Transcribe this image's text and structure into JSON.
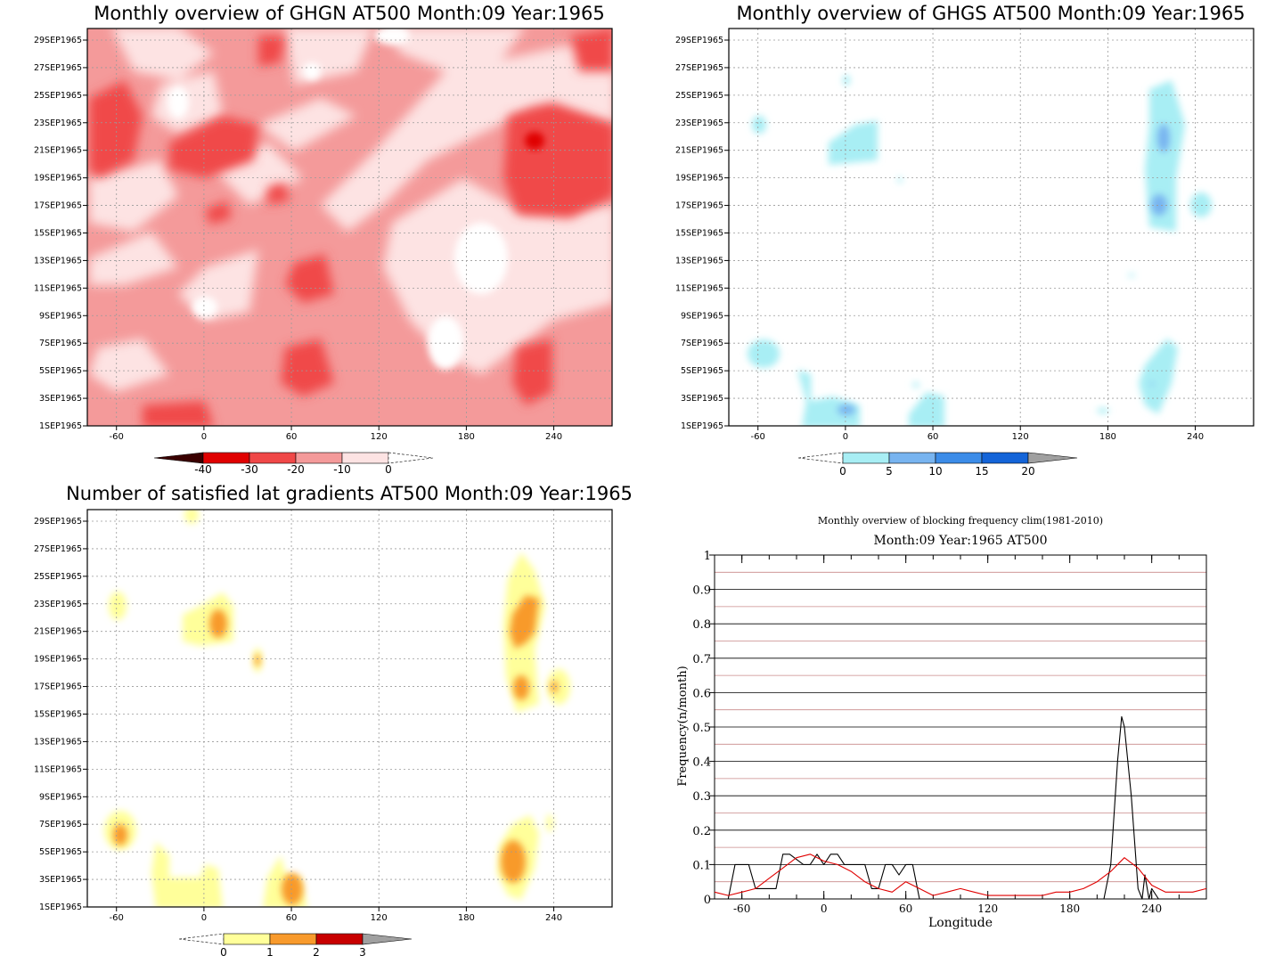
{
  "chart_data": [
    {
      "type": "heatmap",
      "title": "Monthly overview of GHGN AT500 Month:09 Year:1965",
      "xticks": [
        "-60",
        "0",
        "60",
        "120",
        "180",
        "240"
      ],
      "xrange": [
        -80,
        280
      ],
      "yticks": [
        "1SEP1965",
        "3SEP1965",
        "5SEP1965",
        "7SEP1965",
        "9SEP1965",
        "11SEP1965",
        "13SEP1965",
        "15SEP1965",
        "17SEP1965",
        "19SEP1965",
        "21SEP1965",
        "23SEP1965",
        "25SEP1965",
        "27SEP1965",
        "29SEP1965"
      ],
      "colorbar": {
        "labels": [
          "-40",
          "-30",
          "-20",
          "-10",
          "0"
        ],
        "colors": [
          "#3a0000",
          "#e00000",
          "#f04848",
          "#f49a9a",
          "#fde3e3"
        ]
      },
      "grid": true,
      "cells": [
        {
          "lon": -40,
          "day": 22,
          "level": "#f04848"
        },
        {
          "lon": 40,
          "day": 22,
          "level": "#f04848"
        },
        {
          "lon": 225,
          "day": 21,
          "level": "#f04848"
        },
        {
          "lon": 230,
          "day": 22,
          "level": "#e00000"
        },
        {
          "lon": 80,
          "day": 12,
          "level": "#f04848"
        },
        {
          "lon": 80,
          "day": 6,
          "level": "#f04848"
        },
        {
          "lon": 230,
          "day": 5,
          "level": "#f04848"
        },
        {
          "lon": -30,
          "day": 1,
          "level": "#f04848"
        },
        {
          "lon": 20,
          "day": 24,
          "level": "#fde3e3"
        },
        {
          "lon": 150,
          "day": 10,
          "level": "#fde3e3"
        },
        {
          "lon": 120,
          "day": 17,
          "level": "#fde3e3"
        },
        {
          "lon": 180,
          "day": 14,
          "level": "#fde3e3"
        }
      ]
    },
    {
      "type": "heatmap",
      "title": "Monthly overview of GHGS AT500 Month:09 Year:1965",
      "xticks": [
        "-60",
        "0",
        "60",
        "120",
        "180",
        "240"
      ],
      "xrange": [
        -80,
        280
      ],
      "yticks": [
        "1SEP1965",
        "3SEP1965",
        "5SEP1965",
        "7SEP1965",
        "9SEP1965",
        "11SEP1965",
        "13SEP1965",
        "15SEP1965",
        "17SEP1965",
        "19SEP1965",
        "21SEP1965",
        "23SEP1965",
        "25SEP1965",
        "27SEP1965",
        "29SEP1965"
      ],
      "colorbar": {
        "labels": [
          "0",
          "5",
          "10",
          "15",
          "20"
        ],
        "colors": [
          "#a8eef4",
          "#78b4f0",
          "#3c8ce8",
          "#1464d8",
          "#a0a0a0"
        ]
      },
      "grid": true,
      "cells": [
        {
          "lon": 5,
          "day": 21,
          "level": "#a8eef4"
        },
        {
          "lon": 215,
          "day": 19,
          "level": "#a8eef4"
        },
        {
          "lon": 215,
          "day": 21,
          "level": "#78b4f0"
        },
        {
          "lon": 215,
          "day": 17,
          "level": "#78b4f0"
        },
        {
          "lon": -60,
          "day": 6,
          "level": "#a8eef4"
        },
        {
          "lon": 0,
          "day": 2,
          "level": "#78b4f0"
        },
        {
          "lon": 215,
          "day": 4,
          "level": "#a8eef4"
        },
        {
          "lon": 60,
          "day": 2,
          "level": "#a8eef4"
        }
      ]
    },
    {
      "type": "heatmap",
      "title": "Number of satisfied lat gradients AT500 Month:09 Year:1965",
      "xticks": [
        "-60",
        "0",
        "60",
        "120",
        "180",
        "240"
      ],
      "xrange": [
        -80,
        280
      ],
      "yticks": [
        "1SEP1965",
        "3SEP1965",
        "5SEP1965",
        "7SEP1965",
        "9SEP1965",
        "11SEP1965",
        "13SEP1965",
        "15SEP1965",
        "17SEP1965",
        "19SEP1965",
        "21SEP1965",
        "23SEP1965",
        "25SEP1965",
        "27SEP1965",
        "29SEP1965"
      ],
      "colorbar": {
        "labels": [
          "0",
          "1",
          "2",
          "3"
        ],
        "colors": [
          "#ffff9a",
          "#f89a2c",
          "#c80000",
          "#a0a0a0"
        ]
      },
      "grid": true,
      "cells": [
        {
          "lon": 10,
          "day": 22,
          "level": "#f89a2c"
        },
        {
          "lon": 220,
          "day": 22,
          "level": "#f89a2c"
        },
        {
          "lon": 215,
          "day": 17,
          "level": "#f89a2c"
        },
        {
          "lon": -60,
          "day": 6,
          "level": "#f89a2c"
        },
        {
          "lon": 210,
          "day": 4,
          "level": "#f89a2c"
        },
        {
          "lon": 60,
          "day": 2,
          "level": "#f89a2c"
        }
      ]
    },
    {
      "type": "line",
      "title": "Monthly overview of blocking frequency clim(1981-2010)",
      "subtitle": "Month:09 Year:1965  AT500",
      "xlabel": "Longitude",
      "ylabel": "Frequency(n/month)",
      "xrange": [
        -80,
        280
      ],
      "ylim": [
        0,
        1
      ],
      "xticks": [
        "-60",
        "0",
        "60",
        "120",
        "180",
        "240"
      ],
      "yticks": [
        "0",
        "0.1",
        "0.2",
        "0.3",
        "0.4",
        "0.5",
        "0.6",
        "0.7",
        "0.8",
        "0.9",
        "1"
      ],
      "grid": true,
      "series": [
        {
          "color": "#000000",
          "x": [
            -80,
            -70,
            -65,
            -55,
            -50,
            -35,
            -30,
            -25,
            -15,
            -10,
            -5,
            0,
            5,
            10,
            15,
            25,
            30,
            35,
            40,
            45,
            50,
            55,
            60,
            65,
            70,
            75,
            80,
            200,
            205,
            210,
            215,
            218,
            220,
            225,
            230,
            233,
            235,
            238,
            240,
            245,
            250,
            280
          ],
          "y": [
            0,
            0,
            0.1,
            0.1,
            0.03,
            0.03,
            0.13,
            0.13,
            0.1,
            0.1,
            0.13,
            0.1,
            0.13,
            0.13,
            0.1,
            0.1,
            0.1,
            0.03,
            0.03,
            0.1,
            0.1,
            0.07,
            0.1,
            0.1,
            0,
            0,
            0,
            0,
            0,
            0.1,
            0.4,
            0.53,
            0.5,
            0.3,
            0.03,
            0,
            0.07,
            0,
            0.03,
            0,
            0,
            0
          ]
        },
        {
          "color": "#e00000",
          "x": [
            -80,
            -70,
            -60,
            -50,
            -40,
            -30,
            -20,
            -10,
            0,
            10,
            20,
            30,
            40,
            50,
            60,
            70,
            80,
            90,
            100,
            110,
            120,
            130,
            140,
            150,
            160,
            170,
            180,
            190,
            200,
            210,
            220,
            230,
            240,
            250,
            260,
            270,
            280
          ],
          "y": [
            0.02,
            0.01,
            0.02,
            0.03,
            0.06,
            0.09,
            0.12,
            0.13,
            0.11,
            0.1,
            0.08,
            0.05,
            0.03,
            0.02,
            0.05,
            0.03,
            0.01,
            0.02,
            0.03,
            0.02,
            0.01,
            0.01,
            0.01,
            0.01,
            0.01,
            0.02,
            0.02,
            0.03,
            0.05,
            0.08,
            0.12,
            0.09,
            0.04,
            0.02,
            0.02,
            0.02,
            0.03
          ]
        }
      ]
    }
  ]
}
